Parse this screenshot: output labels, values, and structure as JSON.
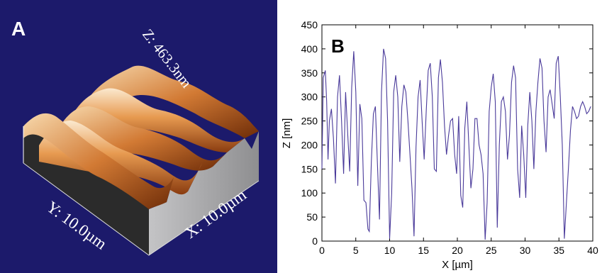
{
  "panel_a": {
    "letter": "A",
    "z_label": "Z: 463.3nm",
    "x_label": "X: 10.0µm",
    "y_label": "Y: 10.0µm",
    "colors": {
      "background": "#1c1a6b",
      "surface_light": "#fbe9cf",
      "surface_mid": "#e79a50",
      "surface_dark": "#8a3c10",
      "side": "#a9a9ab",
      "front": "#2b2b2b"
    }
  },
  "chart_data": {
    "type": "line",
    "panel_label": "B",
    "title": "",
    "xlabel": "X [µm]",
    "ylabel": "Z [nm]",
    "xlim": [
      0,
      40
    ],
    "ylim": [
      0,
      450
    ],
    "xticks": [
      "0",
      "5",
      "10",
      "15",
      "20",
      "25",
      "30",
      "35",
      "40"
    ],
    "yticks": [
      "0",
      "50",
      "100",
      "150",
      "200",
      "250",
      "300",
      "350",
      "400",
      "450"
    ],
    "grid": false,
    "line_color": "#4a3a9a",
    "series": [
      {
        "x": [
          0,
          0.2,
          0.5,
          0.7,
          0.9,
          1.1,
          1.4,
          1.7,
          2.0,
          2.3,
          2.6,
          2.9,
          3.2,
          3.5,
          3.8,
          4.1,
          4.4,
          4.7,
          5.0,
          5.3,
          5.6,
          5.9,
          6.2,
          6.5,
          6.8,
          7.0,
          7.3,
          7.6,
          7.9,
          8.2,
          8.5,
          8.8,
          9.1,
          9.4,
          9.7,
          10.0,
          10.3,
          10.6,
          10.9,
          11.2,
          11.5,
          11.8,
          12.1,
          12.4,
          12.7,
          13.0,
          13.3,
          13.6,
          13.9,
          14.2,
          14.5,
          14.8,
          15.1,
          15.4,
          15.7,
          16.0,
          16.3,
          16.6,
          16.9,
          17.2,
          17.5,
          17.8,
          18.1,
          18.4,
          18.7,
          19.0,
          19.3,
          19.6,
          19.9,
          20.2,
          20.5,
          20.8,
          21.1,
          21.4,
          21.7,
          22.0,
          22.3,
          22.6,
          22.9,
          23.2,
          23.5,
          23.8,
          24.1,
          24.4,
          24.7,
          25.0,
          25.3,
          25.6,
          25.9,
          26.2,
          26.5,
          26.8,
          27.1,
          27.4,
          27.7,
          28.0,
          28.3,
          28.6,
          28.9,
          29.2,
          29.5,
          29.8,
          30.1,
          30.4,
          30.7,
          31.0,
          31.3,
          31.6,
          31.9,
          32.2,
          32.5,
          32.8,
          33.1,
          33.4,
          33.7,
          34.0,
          34.3,
          34.6,
          34.9,
          35.2,
          35.5,
          35.8,
          36.1,
          36.4,
          36.7,
          37.0,
          37.3,
          37.6,
          37.9,
          38.2,
          38.5,
          38.8,
          39.1,
          39.4,
          39.7
        ],
        "y": [
          150,
          340,
          355,
          290,
          170,
          250,
          275,
          215,
          120,
          300,
          345,
          250,
          140,
          310,
          225,
          145,
          320,
          395,
          310,
          115,
          285,
          255,
          85,
          80,
          25,
          20,
          165,
          265,
          280,
          160,
          45,
          310,
          400,
          380,
          250,
          5,
          100,
          310,
          345,
          300,
          165,
          280,
          325,
          310,
          250,
          180,
          110,
          10,
          195,
          300,
          335,
          250,
          170,
          270,
          355,
          370,
          300,
          150,
          145,
          340,
          378,
          330,
          240,
          180,
          220,
          250,
          255,
          180,
          140,
          260,
          95,
          70,
          235,
          290,
          200,
          110,
          150,
          255,
          255,
          200,
          180,
          140,
          3,
          80,
          270,
          320,
          348,
          290,
          28,
          200,
          290,
          300,
          270,
          170,
          220,
          330,
          365,
          340,
          150,
          90,
          240,
          180,
          90,
          240,
          310,
          250,
          150,
          270,
          330,
          380,
          360,
          250,
          185,
          300,
          315,
          285,
          255,
          370,
          385,
          300,
          200,
          5,
          80,
          150,
          230,
          280,
          270,
          255,
          260,
          280,
          290,
          280,
          265,
          270,
          280
        ]
      }
    ]
  }
}
